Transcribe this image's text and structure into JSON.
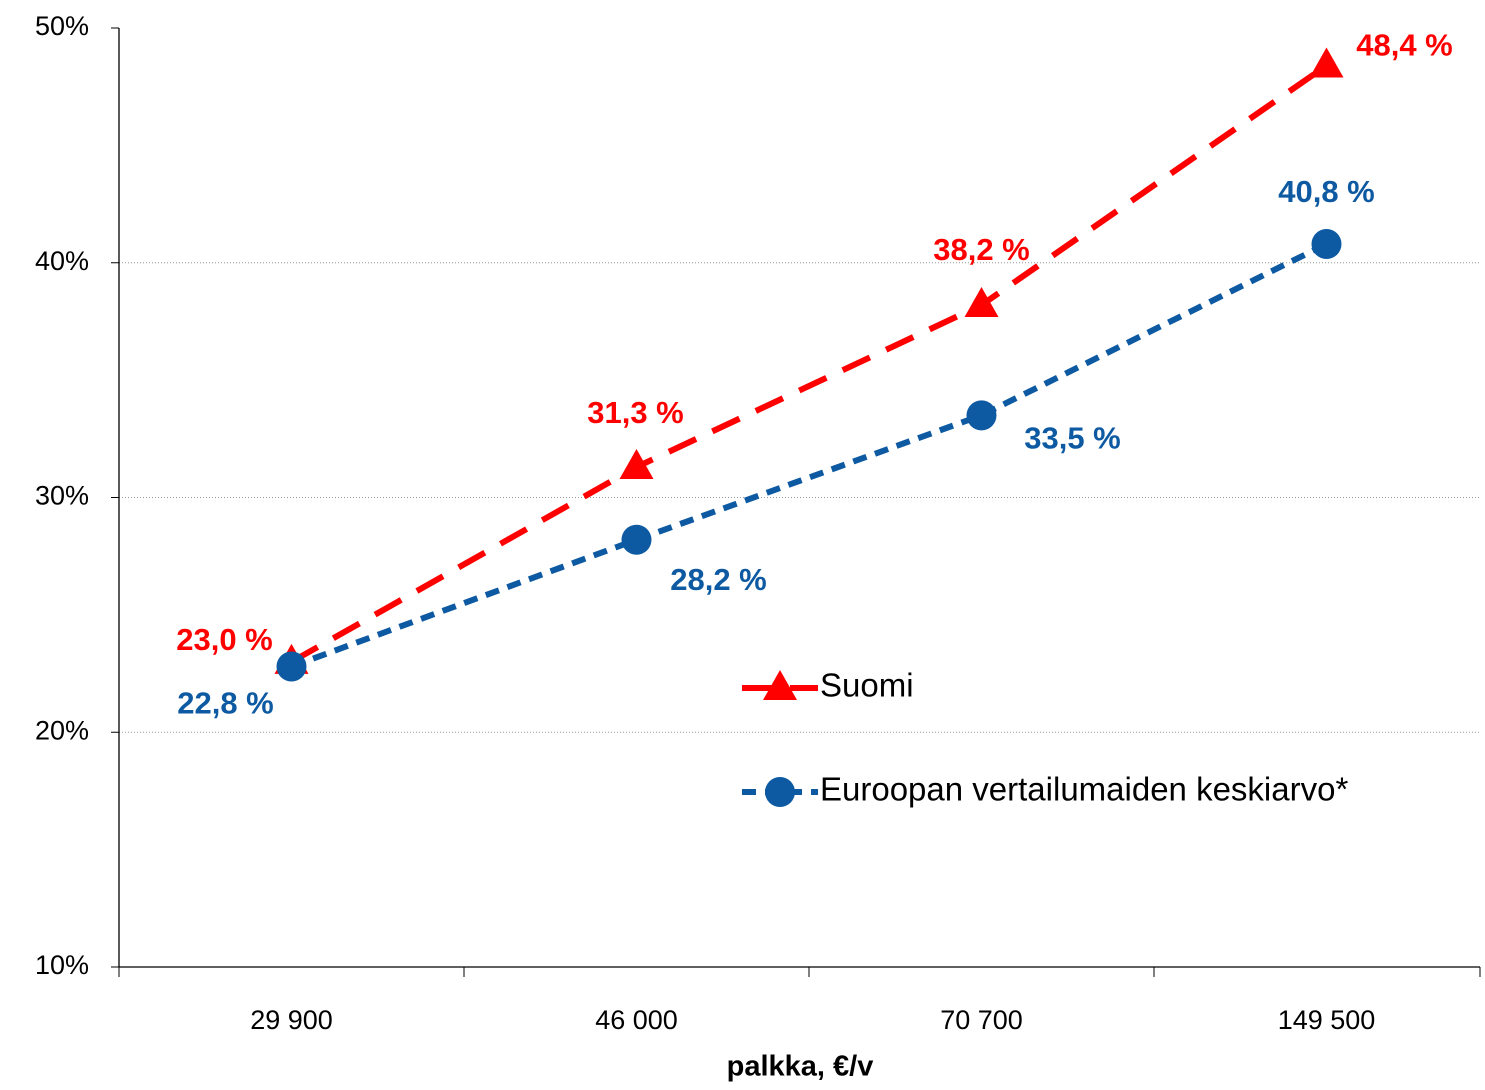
{
  "chart_data": {
    "type": "line",
    "categories": [
      "29 900",
      "46 000",
      "70 700",
      "149 500"
    ],
    "series": [
      {
        "name": "Suomi",
        "color": "#ff0000",
        "marker": "triangle",
        "dash": "long",
        "values": [
          23.0,
          31.3,
          38.2,
          48.4
        ],
        "value_labels": [
          "23,0 %",
          "31,3 %",
          "38,2 %",
          "48,4 %"
        ]
      },
      {
        "name": "Euroopan vertailumaiden keskiarvo*",
        "color": "#0d5aa3",
        "marker": "circle",
        "dash": "short",
        "values": [
          22.8,
          28.2,
          33.5,
          40.8
        ],
        "value_labels": [
          "22,8 %",
          "28,2 %",
          "33,5 %",
          "40,8 %"
        ]
      }
    ],
    "xlabel": "palkka, €/v",
    "ylim": [
      10,
      50
    ],
    "yticks": [
      {
        "value": 10,
        "label": "10%"
      },
      {
        "value": 20,
        "label": "20%"
      },
      {
        "value": 30,
        "label": "30%"
      },
      {
        "value": 40,
        "label": "40%"
      },
      {
        "value": 50,
        "label": "50%"
      }
    ],
    "grid": true
  }
}
